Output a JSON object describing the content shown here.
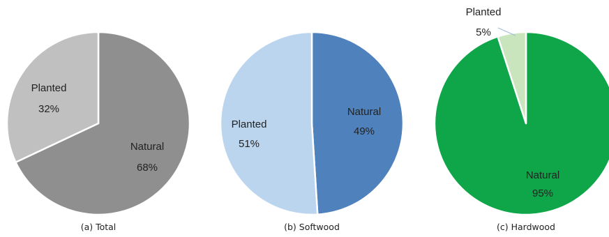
{
  "chart_data": [
    {
      "type": "pie",
      "caption": "(a) Total",
      "slices": [
        {
          "label": "Natural",
          "value": 68,
          "value_text": "68%",
          "color": "#8f8f8f"
        },
        {
          "label": "Planted",
          "value": 32,
          "value_text": "32%",
          "color": "#c0c0c0"
        }
      ]
    },
    {
      "type": "pie",
      "caption": "(b) Softwood",
      "slices": [
        {
          "label": "Natural",
          "value": 49,
          "value_text": "49%",
          "color": "#4f81bd"
        },
        {
          "label": "Planted",
          "value": 51,
          "value_text": "51%",
          "color": "#bcd5ee"
        }
      ]
    },
    {
      "type": "pie",
      "caption": "(c) Hardwood",
      "slices": [
        {
          "label": "Natural",
          "value": 95,
          "value_text": "95%",
          "color": "#0fa64a"
        },
        {
          "label": "Planted",
          "value": 5,
          "value_text": "5%",
          "color": "#c9e5bd"
        }
      ]
    }
  ]
}
